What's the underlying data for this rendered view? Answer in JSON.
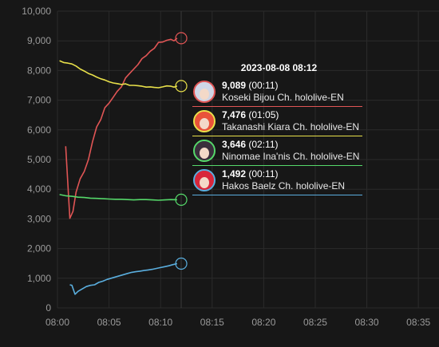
{
  "tooltip": {
    "title": "2023-08-08 08:12",
    "entries": [
      {
        "value": "9,089",
        "time": "(00:11)",
        "name": "Koseki Bijou Ch. hololive-EN",
        "color": "#e05555",
        "hair": "#cfd6e6",
        "avatar": "koseki-bijou-avatar"
      },
      {
        "value": "7,476",
        "time": "(01:05)",
        "name": "Takanashi Kiara Ch. hololive-EN",
        "color": "#e8e04a",
        "hair": "#e9523a",
        "avatar": "takanashi-kiara-avatar"
      },
      {
        "value": "3,646",
        "time": "(02:11)",
        "name": "Ninomae Ina'nis Ch. hololive-EN",
        "color": "#55d86a",
        "hair": "#3a2e3c",
        "avatar": "ninomae-inanis-avatar"
      },
      {
        "value": "1,492",
        "time": "(00:11)",
        "name": "Hakos Baelz Ch. hololive-EN",
        "color": "#5aaede",
        "hair": "#d8263a",
        "avatar": "hakos-baelz-avatar"
      }
    ]
  },
  "chart_data": {
    "type": "line",
    "y_ticks": [
      "0",
      "1,000",
      "2,000",
      "3,000",
      "4,000",
      "5,000",
      "6,000",
      "7,000",
      "8,000",
      "9,000",
      "10,000"
    ],
    "x_ticks": [
      "08:00",
      "08:05",
      "08:10",
      "08:15",
      "08:20",
      "08:25",
      "08:30",
      "08:35"
    ],
    "ylim": [
      0,
      10000
    ],
    "xlim_minutes": [
      0,
      37
    ],
    "grid": true,
    "hover_minute": 12,
    "series": [
      {
        "name": "Koseki Bijou Ch. hololive-EN",
        "color": "#e05555",
        "x": [
          0.8,
          1.2,
          1.5,
          1.8,
          2.2,
          2.6,
          3.0,
          3.4,
          3.8,
          4.2,
          4.6,
          5.0,
          5.4,
          5.8,
          6.2,
          6.6,
          7.0,
          7.4,
          7.8,
          8.2,
          8.6,
          9.0,
          9.4,
          9.8,
          10.2,
          10.6,
          11.0,
          11.3,
          11.6
        ],
        "y": [
          5450,
          3020,
          3250,
          3900,
          4350,
          4600,
          5000,
          5600,
          6100,
          6350,
          6750,
          6900,
          7100,
          7300,
          7450,
          7750,
          7900,
          8050,
          8200,
          8400,
          8500,
          8650,
          8750,
          8950,
          8960,
          9020,
          9050,
          9000,
          9089
        ]
      },
      {
        "name": "Takanashi Kiara Ch. hololive-EN",
        "color": "#e8e04a",
        "x": [
          0.2,
          0.6,
          1.0,
          1.4,
          1.8,
          2.2,
          2.6,
          3.0,
          3.4,
          3.8,
          4.2,
          4.6,
          5.0,
          5.4,
          5.8,
          6.2,
          6.6,
          7.0,
          7.4,
          7.8,
          8.2,
          8.6,
          9.0,
          9.4,
          9.8,
          10.2,
          10.6,
          11.0,
          11.3,
          11.6
        ],
        "y": [
          8330,
          8270,
          8250,
          8220,
          8150,
          8050,
          7980,
          7900,
          7850,
          7780,
          7720,
          7680,
          7620,
          7580,
          7560,
          7530,
          7550,
          7500,
          7500,
          7490,
          7470,
          7440,
          7450,
          7430,
          7420,
          7450,
          7480,
          7470,
          7440,
          7476
        ]
      },
      {
        "name": "Ninomae Ina'nis Ch. hololive-EN",
        "color": "#55d86a",
        "x": [
          0.2,
          0.8,
          1.4,
          2.0,
          2.6,
          3.2,
          3.8,
          4.4,
          5.0,
          5.6,
          6.2,
          6.8,
          7.4,
          8.0,
          8.6,
          9.2,
          9.8,
          10.4,
          11.0,
          11.6
        ],
        "y": [
          3820,
          3780,
          3760,
          3730,
          3720,
          3700,
          3690,
          3680,
          3670,
          3660,
          3660,
          3650,
          3640,
          3650,
          3650,
          3640,
          3630,
          3640,
          3650,
          3646
        ]
      },
      {
        "name": "Hakos Baelz Ch. hololive-EN",
        "color": "#5aaede",
        "x": [
          1.2,
          1.4,
          1.7,
          2.0,
          2.4,
          2.8,
          3.2,
          3.6,
          4.0,
          4.4,
          4.8,
          5.2,
          5.6,
          6.0,
          6.4,
          6.8,
          7.2,
          7.6,
          8.0,
          8.4,
          8.8,
          9.2,
          9.6,
          10.0,
          10.4,
          10.8,
          11.2,
          11.6
        ],
        "y": [
          780,
          760,
          460,
          560,
          640,
          720,
          760,
          780,
          860,
          900,
          960,
          1000,
          1040,
          1080,
          1120,
          1160,
          1200,
          1220,
          1240,
          1260,
          1280,
          1300,
          1330,
          1360,
          1390,
          1420,
          1460,
          1492
        ]
      }
    ]
  }
}
